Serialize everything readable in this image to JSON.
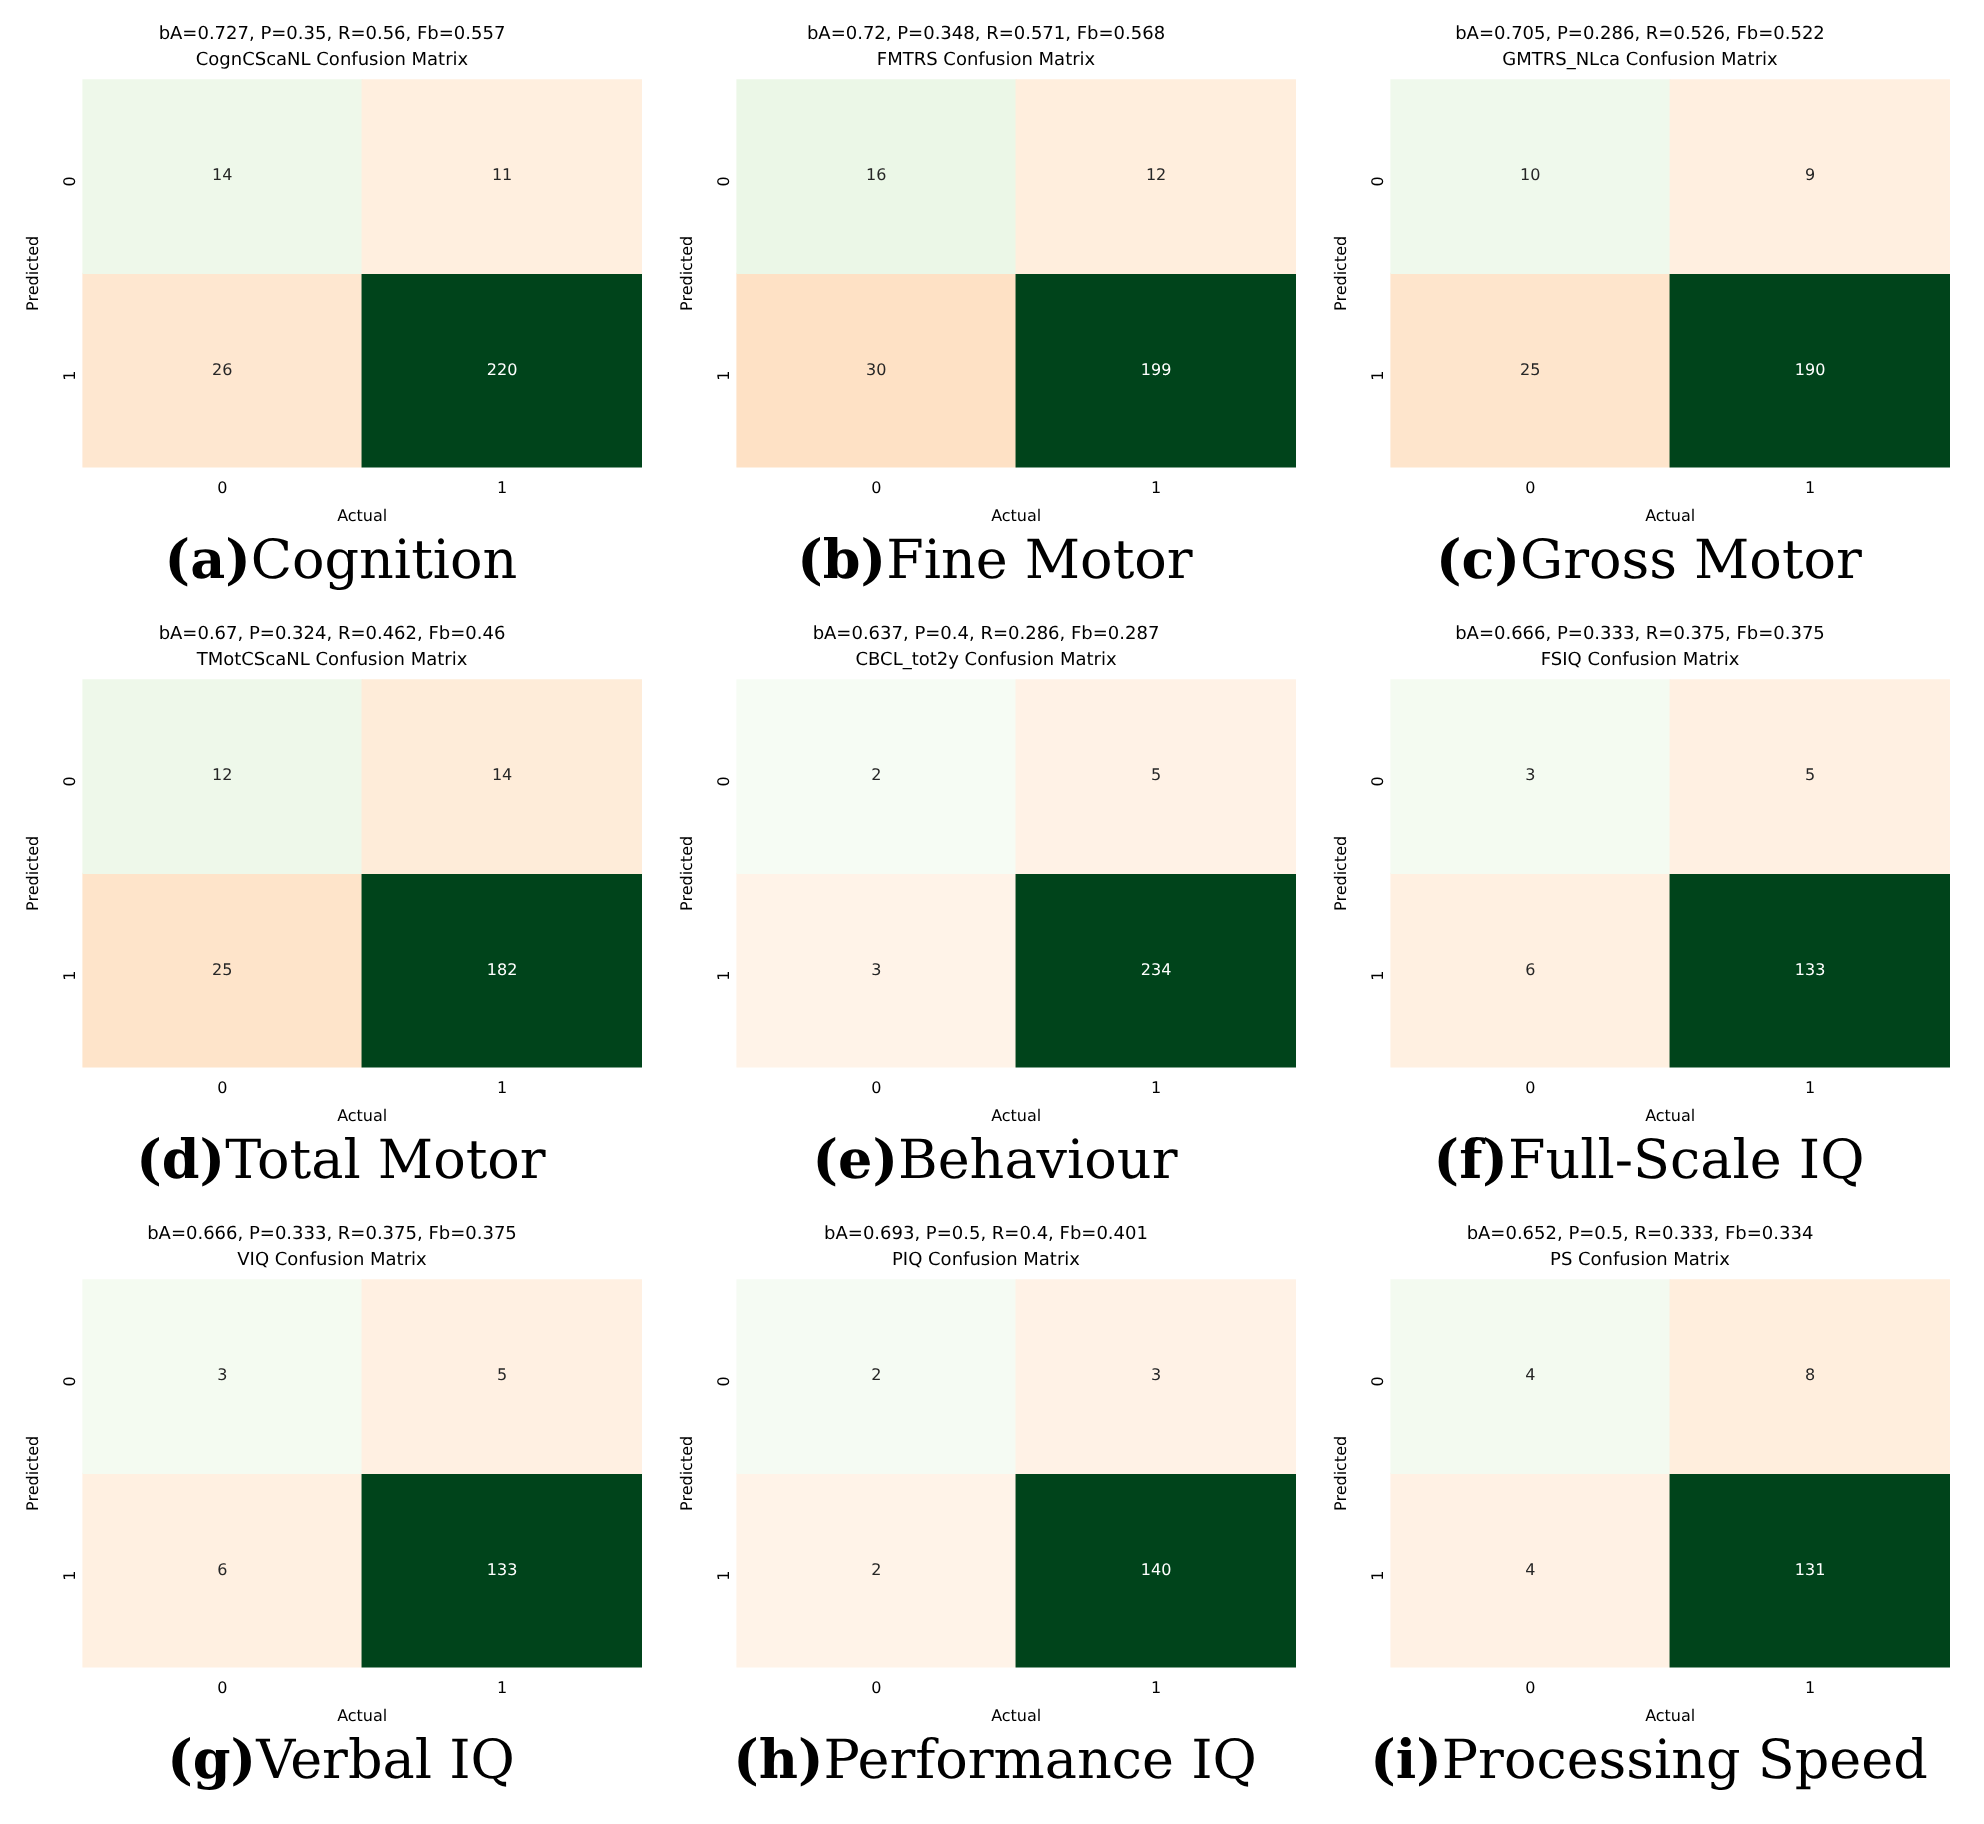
{
  "chart_data": [
    {
      "type": "heatmap",
      "title": "bA=0.727, P=0.35, R=0.56, Fb=0.557",
      "subtitle": "CognCScaNL Confusion Matrix",
      "xlabel": "Actual",
      "ylabel": "Predicted",
      "categories": [
        "0",
        "1"
      ],
      "y_categories": [
        "0",
        "1"
      ],
      "cells": [
        [
          14,
          11
        ],
        [
          26,
          220
        ]
      ],
      "data_labels": true,
      "annotations": [
        "(a)Cognition"
      ]
    },
    {
      "type": "heatmap",
      "title": "bA=0.72, P=0.348, R=0.571, Fb=0.568",
      "subtitle": "FMTRS Confusion Matrix",
      "xlabel": "Actual",
      "ylabel": "Predicted",
      "categories": [
        "0",
        "1"
      ],
      "y_categories": [
        "0",
        "1"
      ],
      "cells": [
        [
          16,
          12
        ],
        [
          30,
          199
        ]
      ],
      "data_labels": true,
      "annotations": [
        "(b)Fine Motor"
      ]
    },
    {
      "type": "heatmap",
      "title": "bA=0.705, P=0.286, R=0.526, Fb=0.522",
      "subtitle": "GMTRS_NLca Confusion Matrix",
      "xlabel": "Actual",
      "ylabel": "Predicted",
      "categories": [
        "0",
        "1"
      ],
      "y_categories": [
        "0",
        "1"
      ],
      "cells": [
        [
          10,
          9
        ],
        [
          25,
          190
        ]
      ],
      "data_labels": true,
      "annotations": [
        "(c)Gross Motor"
      ]
    },
    {
      "type": "heatmap",
      "title": "bA=0.67, P=0.324, R=0.462, Fb=0.46",
      "subtitle": "TMotCScaNL Confusion Matrix",
      "xlabel": "Actual",
      "ylabel": "Predicted",
      "categories": [
        "0",
        "1"
      ],
      "y_categories": [
        "0",
        "1"
      ],
      "cells": [
        [
          12,
          14
        ],
        [
          25,
          182
        ]
      ],
      "data_labels": true,
      "annotations": [
        "(d)Total Motor"
      ]
    },
    {
      "type": "heatmap",
      "title": "bA=0.637, P=0.4, R=0.286, Fb=0.287",
      "subtitle": "CBCL_tot2y Confusion Matrix",
      "xlabel": "Actual",
      "ylabel": "Predicted",
      "categories": [
        "0",
        "1"
      ],
      "y_categories": [
        "0",
        "1"
      ],
      "cells": [
        [
          2,
          5
        ],
        [
          3,
          234
        ]
      ],
      "data_labels": true,
      "annotations": [
        "(e)Behaviour"
      ]
    },
    {
      "type": "heatmap",
      "title": "bA=0.666, P=0.333, R=0.375, Fb=0.375",
      "subtitle": "FSIQ Confusion Matrix",
      "xlabel": "Actual",
      "ylabel": "Predicted",
      "categories": [
        "0",
        "1"
      ],
      "y_categories": [
        "0",
        "1"
      ],
      "cells": [
        [
          3,
          5
        ],
        [
          6,
          133
        ]
      ],
      "data_labels": true,
      "annotations": [
        "(f)Full-Scale IQ"
      ]
    },
    {
      "type": "heatmap",
      "title": "bA=0.666, P=0.333, R=0.375, Fb=0.375",
      "subtitle": "VIQ Confusion Matrix",
      "xlabel": "Actual",
      "ylabel": "Predicted",
      "categories": [
        "0",
        "1"
      ],
      "y_categories": [
        "0",
        "1"
      ],
      "cells": [
        [
          3,
          5
        ],
        [
          6,
          133
        ]
      ],
      "data_labels": true,
      "annotations": [
        "(g)Verbal IQ"
      ]
    },
    {
      "type": "heatmap",
      "title": "bA=0.693, P=0.5, R=0.4, Fb=0.401",
      "subtitle": "PIQ Confusion Matrix",
      "xlabel": "Actual",
      "ylabel": "Predicted",
      "categories": [
        "0",
        "1"
      ],
      "y_categories": [
        "0",
        "1"
      ],
      "cells": [
        [
          2,
          3
        ],
        [
          2,
          140
        ]
      ],
      "data_labels": true,
      "annotations": [
        "(h)Performance IQ"
      ]
    },
    {
      "type": "heatmap",
      "title": "bA=0.652, P=0.5, R=0.333, Fb=0.334",
      "subtitle": "PS Confusion Matrix",
      "xlabel": "Actual",
      "ylabel": "Predicted",
      "categories": [
        "0",
        "1"
      ],
      "y_categories": [
        "0",
        "1"
      ],
      "cells": [
        [
          4,
          8
        ],
        [
          4,
          131
        ]
      ],
      "data_labels": true,
      "annotations": [
        "(i)Processing Speed"
      ]
    }
  ]
}
